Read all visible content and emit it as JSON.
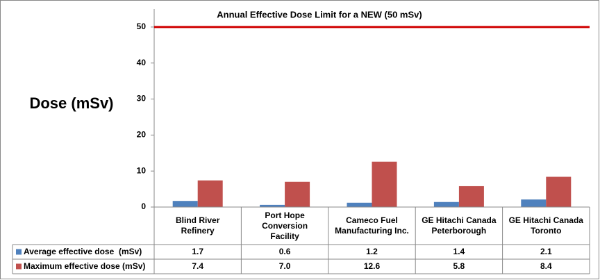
{
  "chart_data": {
    "type": "bar",
    "y_label": "Dose (mSv)",
    "limit": {
      "value": 50,
      "label": "Annual Effective Dose Limit for a NEW (50 mSv)",
      "color": "#d00000"
    },
    "categories": [
      "Blind River Refinery",
      "Port Hope Conversion Facility",
      "Cameco Fuel Manufacturing Inc.",
      "GE Hitachi Canada Peterborough",
      "GE Hitachi Canada Toronto"
    ],
    "series": [
      {
        "name": "Average effective dose  (mSv)",
        "color": "#4f81bd",
        "values": [
          1.7,
          0.6,
          1.2,
          1.4,
          2.1
        ],
        "value_labels": [
          "1.7",
          "0.6",
          "1.2",
          "1.4",
          "2.1"
        ]
      },
      {
        "name": "Maximum effective dose (mSv)",
        "color": "#c0504d",
        "values": [
          7.4,
          7,
          12.6,
          5.8,
          8.4
        ],
        "value_labels": [
          "7.4",
          "7.0",
          "12.6",
          "5.8",
          "8.4"
        ]
      }
    ],
    "ylim": [
      0,
      55
    ],
    "yticks": [
      0,
      10,
      20,
      30,
      40,
      50
    ],
    "grid": true
  }
}
